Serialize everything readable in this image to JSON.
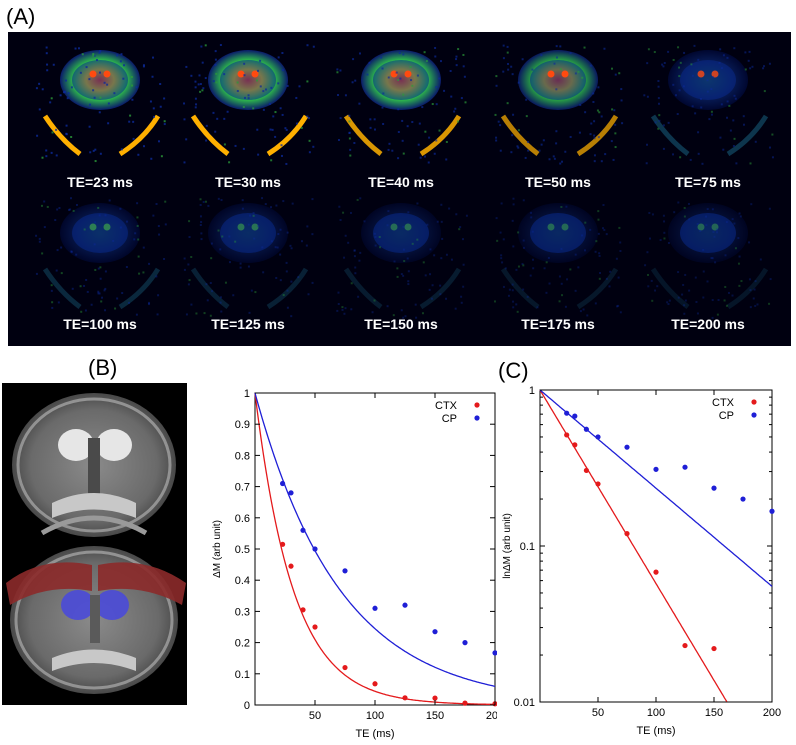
{
  "panels": {
    "a": "(A)",
    "b": "(B)",
    "c": "(C)"
  },
  "te_labels": [
    "TE=23 ms",
    "TE=30 ms",
    "TE=40 ms",
    "TE=50 ms",
    "TE=75 ms",
    "TE=100 ms",
    "TE=125 ms",
    "TE=150 ms",
    "TE=175 ms",
    "TE=200 ms"
  ],
  "legend": {
    "ctx_color": "#e41a1c",
    "cp_color": "#1f1fd6"
  },
  "chart_data": [
    {
      "type": "scatter",
      "xlabel": "TE (ms)",
      "ylabel": "ΔM (arb unit)",
      "xlim": [
        0,
        200
      ],
      "ylim": [
        0,
        1
      ],
      "xticks": [
        50,
        100,
        150,
        200
      ],
      "yticks": [
        0,
        0.1,
        0.2,
        0.3,
        0.4,
        0.5,
        0.6,
        0.7,
        0.8,
        0.9,
        1
      ],
      "legend_position": "top-right",
      "series": [
        {
          "name": "CTX",
          "color": "#e41a1c",
          "x": [
            23,
            30,
            40,
            50,
            75,
            100,
            125,
            150,
            175,
            200
          ],
          "y": [
            0.515,
            0.445,
            0.305,
            0.25,
            0.12,
            0.068,
            0.023,
            0.022,
            0.006,
            0.004
          ],
          "fit_T2_ms": 32
        },
        {
          "name": "CP",
          "color": "#1f1fd6",
          "x": [
            23,
            30,
            40,
            50,
            75,
            100,
            125,
            150,
            175,
            200
          ],
          "y": [
            0.71,
            0.68,
            0.56,
            0.5,
            0.43,
            0.31,
            0.32,
            0.235,
            0.2,
            0.167
          ],
          "fit_T2_ms": 71
        }
      ]
    },
    {
      "type": "scatter",
      "xlabel": "TE (ms)",
      "ylabel": "lnΔM (arb unit)",
      "yscale": "log",
      "xlim": [
        0,
        200
      ],
      "ylim": [
        0.01,
        1
      ],
      "xticks": [
        50,
        100,
        150,
        200
      ],
      "yticks": [
        0.01,
        0.1,
        1
      ],
      "legend_position": "top-right",
      "series": [
        {
          "name": "CTX",
          "color": "#e41a1c",
          "x": [
            23,
            30,
            40,
            50,
            75,
            100,
            125,
            150
          ],
          "y": [
            0.515,
            0.445,
            0.305,
            0.25,
            0.12,
            0.068,
            0.023,
            0.022
          ],
          "fit_T2_ms": 35
        },
        {
          "name": "CP",
          "color": "#1f1fd6",
          "x": [
            23,
            30,
            40,
            50,
            75,
            100,
            125,
            150,
            175,
            200
          ],
          "y": [
            0.71,
            0.68,
            0.56,
            0.5,
            0.43,
            0.31,
            0.32,
            0.235,
            0.2,
            0.167
          ],
          "fit_T2_ms": 69
        }
      ]
    }
  ]
}
